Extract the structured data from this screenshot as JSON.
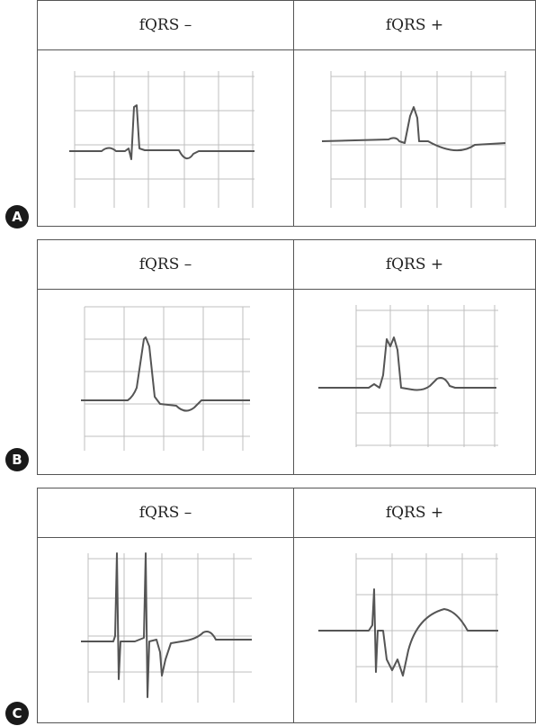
{
  "panels": [
    {
      "letter": "A",
      "left_label": "fQRS –",
      "right_label": "fQRS +"
    },
    {
      "letter": "B",
      "left_label": "fQRS –",
      "right_label": "fQRS +"
    },
    {
      "letter": "C",
      "left_label": "fQRS –",
      "right_label": "fQRS +"
    }
  ],
  "colors": {
    "border": "#555555",
    "grid": "#bfbfbf",
    "trace": "#555555",
    "badge": "#1a1a1a"
  }
}
